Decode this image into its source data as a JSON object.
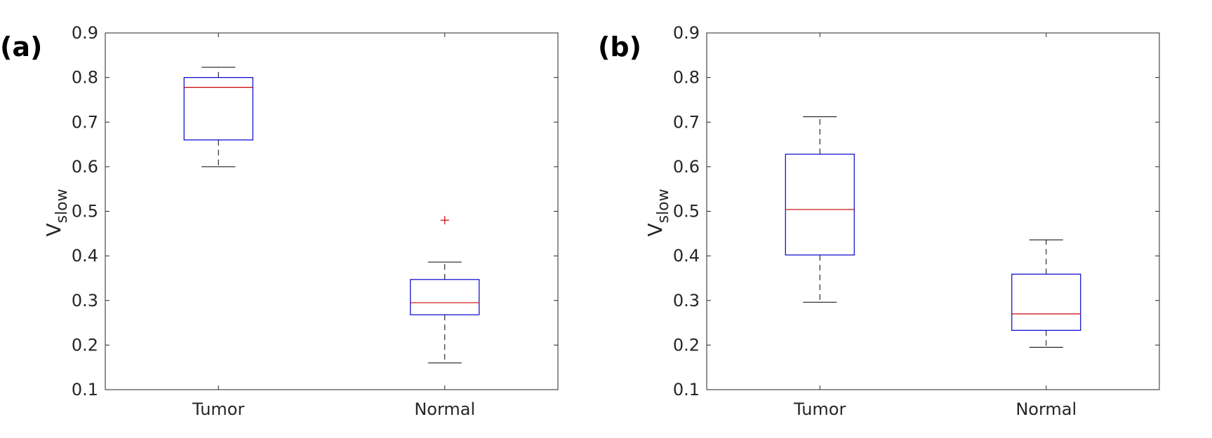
{
  "chart_data": [
    {
      "type": "boxplot",
      "panel_label": "(a)",
      "ylabel_main": "V",
      "ylabel_sub": "slow",
      "xlabel": "",
      "ylim": [
        0.1,
        0.9
      ],
      "yticks": [
        "0.1",
        "0.2",
        "0.3",
        "0.4",
        "0.5",
        "0.6",
        "0.7",
        "0.8",
        "0.9"
      ],
      "categories": [
        "Tumor",
        "Normal"
      ],
      "boxes": [
        {
          "name": "Tumor",
          "whisker_low": 0.6,
          "q1": 0.66,
          "median": 0.778,
          "q3": 0.8,
          "whisker_high": 0.823,
          "outliers": []
        },
        {
          "name": "Normal",
          "whisker_low": 0.16,
          "q1": 0.268,
          "median": 0.295,
          "q3": 0.347,
          "whisker_high": 0.386,
          "outliers": [
            0.48
          ]
        }
      ]
    },
    {
      "type": "boxplot",
      "panel_label": "(b)",
      "ylabel_main": "V",
      "ylabel_sub": "slow",
      "xlabel": "",
      "ylim": [
        0.1,
        0.9
      ],
      "yticks": [
        "0.1",
        "0.2",
        "0.3",
        "0.4",
        "0.5",
        "0.6",
        "0.7",
        "0.8",
        "0.9"
      ],
      "categories": [
        "Tumor",
        "Normal"
      ],
      "boxes": [
        {
          "name": "Tumor",
          "whisker_low": 0.296,
          "q1": 0.402,
          "median": 0.504,
          "q3": 0.628,
          "whisker_high": 0.712,
          "outliers": []
        },
        {
          "name": "Normal",
          "whisker_low": 0.195,
          "q1": 0.233,
          "median": 0.27,
          "q3": 0.359,
          "whisker_high": 0.436,
          "outliers": []
        }
      ]
    }
  ],
  "colors": {
    "box": "#0000cd",
    "median": "#cc0000",
    "whisker": "#000000",
    "outlier": "#cc0000",
    "axis": "#262626"
  }
}
